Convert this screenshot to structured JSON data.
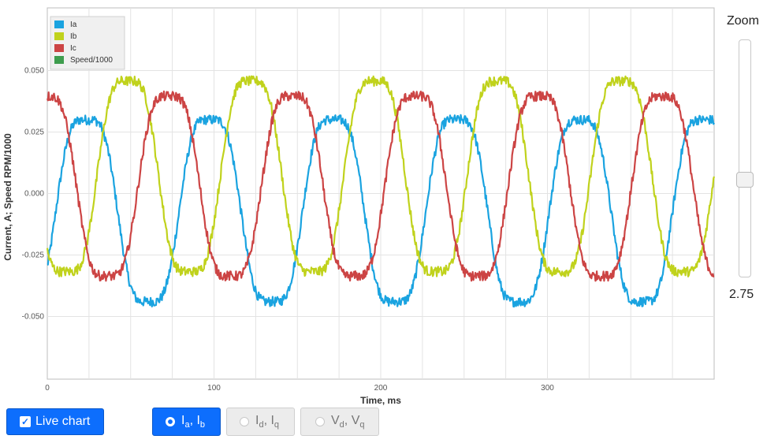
{
  "chart_data": {
    "type": "line",
    "xlabel": "Time, ms",
    "ylabel": "Current, A; Speed RPM/1000",
    "xlim": [
      0,
      400
    ],
    "ylim": [
      -0.0755,
      0.0755
    ],
    "x_ticks": [
      0,
      100,
      200,
      300
    ],
    "y_ticks": [
      -0.05,
      -0.025,
      0.0,
      0.025,
      0.05
    ],
    "y_tick_labels": [
      "-0.050",
      "-0.025",
      "0.000",
      "0.025",
      "0.050"
    ],
    "grid": true,
    "legend_position": "top-left",
    "period_ms": 74,
    "series": [
      {
        "name": "Ia",
        "color": "#1aa3e0",
        "amplitude": 0.042,
        "offset": -0.007,
        "phase_deg": -25
      },
      {
        "name": "Ib",
        "color": "#c0d21c",
        "amplitude": 0.044,
        "offset": 0.007,
        "phase_deg": -145
      },
      {
        "name": "Ic",
        "color": "#cc4444",
        "amplitude": 0.0415,
        "offset": 0.003,
        "phase_deg": 95
      },
      {
        "name": "Speed/1000",
        "color": "#3e9d4e",
        "values": []
      }
    ]
  },
  "zoom": {
    "title": "Zoom",
    "value": "2.75",
    "level": 0.4
  },
  "controls": {
    "live_chart_label": "Live chart",
    "live_chart_checked": true,
    "radio_iab": {
      "main1": "I",
      "sub1": "a",
      "sep": ", ",
      "main2": "I",
      "sub2": "b",
      "selected": true
    },
    "radio_idq": {
      "main1": "I",
      "sub1": "d",
      "sep": ", ",
      "main2": "I",
      "sub2": "q",
      "selected": false
    },
    "radio_vdq": {
      "main1": "V",
      "sub1": "d",
      "sep": ", ",
      "main2": "V",
      "sub2": "q",
      "selected": false
    }
  }
}
